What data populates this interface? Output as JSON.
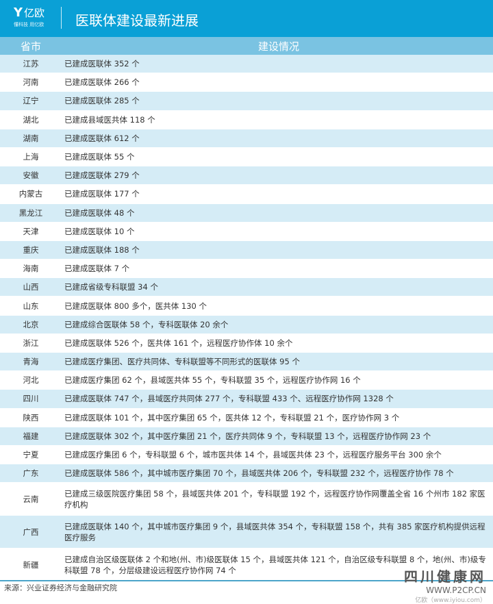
{
  "header": {
    "logo_name": "亿欧",
    "logo_slogan": "懂科技 用亿欧",
    "title": "医联体建设最新进展"
  },
  "table": {
    "columns": [
      "省市",
      "建设情况"
    ],
    "rows": [
      {
        "province": "江苏",
        "status": "已建成医联体 352 个"
      },
      {
        "province": "河南",
        "status": "已建成医联体 266 个"
      },
      {
        "province": "辽宁",
        "status": "已建成医联体 285 个"
      },
      {
        "province": "湖北",
        "status": "已建成县域医共体 118 个"
      },
      {
        "province": "湖南",
        "status": "已建成医联体 612 个"
      },
      {
        "province": "上海",
        "status": "已建成医联体 55 个"
      },
      {
        "province": "安徽",
        "status": "已建成医联体 279 个"
      },
      {
        "province": "内蒙古",
        "status": "已建成医联体 177 个"
      },
      {
        "province": "黑龙江",
        "status": "已建成医联体 48 个"
      },
      {
        "province": "天津",
        "status": "已建成医联体 10 个"
      },
      {
        "province": "重庆",
        "status": "已建成医联体 188 个"
      },
      {
        "province": "海南",
        "status": "已建成医联体 7 个"
      },
      {
        "province": "山西",
        "status": "已建成省级专科联盟 34 个"
      },
      {
        "province": "山东",
        "status": "已建成医联体 800 多个，医共体 130 个"
      },
      {
        "province": "北京",
        "status": "已建成综合医联体 58 个，专科医联体 20 余个"
      },
      {
        "province": "浙江",
        "status": "已建成医联体 526 个，医共体 161 个，远程医疗协作体 10 余个"
      },
      {
        "province": "青海",
        "status": "已建成医疗集团、医疗共同体、专科联盟等不同形式的医联体 95 个"
      },
      {
        "province": "河北",
        "status": "已建成医疗集团 62 个，县域医共体 55 个，专科联盟 35 个，远程医疗协作网 16 个"
      },
      {
        "province": "四川",
        "status": "已建成医联体 747 个，县域医疗共同体 277 个，专科联盟 433 个、远程医疗协作网 1328 个"
      },
      {
        "province": "陕西",
        "status": "已建成医联体 101 个，其中医疗集团 65 个，医共体 12 个，专科联盟 21 个，医疗协作网 3 个"
      },
      {
        "province": "福建",
        "status": "已建成医联体 302 个，其中医疗集团 21 个，医疗共同体 9 个，专科联盟 13 个，远程医疗协作网 23 个"
      },
      {
        "province": "宁夏",
        "status": "已建成医疗集团 6 个，专科联盟 6 个，城市医共体 14 个，县域医共体 23 个，远程医疗服务平台 300 余个"
      },
      {
        "province": "广东",
        "status": "已建成医联体 586 个，其中城市医疗集团 70 个，县域医共体 206 个，专科联盟 232 个，远程医疗协作 78 个"
      },
      {
        "province": "云南",
        "status": "已建成三级医院医疗集团 58 个，县域医共体 201 个，专科联盟 192 个，远程医疗协作网覆盖全省 16 个州市 182 家医疗机构"
      },
      {
        "province": "广西",
        "status": "已建成医联体 140 个，其中城市医疗集团 9 个，县域医共体 354 个，专科联盟 158 个，共有 385 家医疗机构提供远程医疗服务"
      },
      {
        "province": "新疆",
        "status": "已建成自治区级医联体 2 个和地(州、市)级医联体 15 个，县域医共体 121 个，自治区级专科联盟 8 个，地(州、市)级专科联盟 78 个，分层级建设远程医疗协作网 74 个"
      }
    ]
  },
  "footer": {
    "source": "来源：兴业证券经济与金融研究院"
  },
  "watermark": {
    "name": "四川健康网",
    "url": "WWW.P2CP.CN",
    "credit": "亿欧（www.iyiou.com）"
  },
  "colors": {
    "brand": "#0aa0d6",
    "header_row": "#7ac3e2",
    "stripe": "#d5ecf6"
  }
}
